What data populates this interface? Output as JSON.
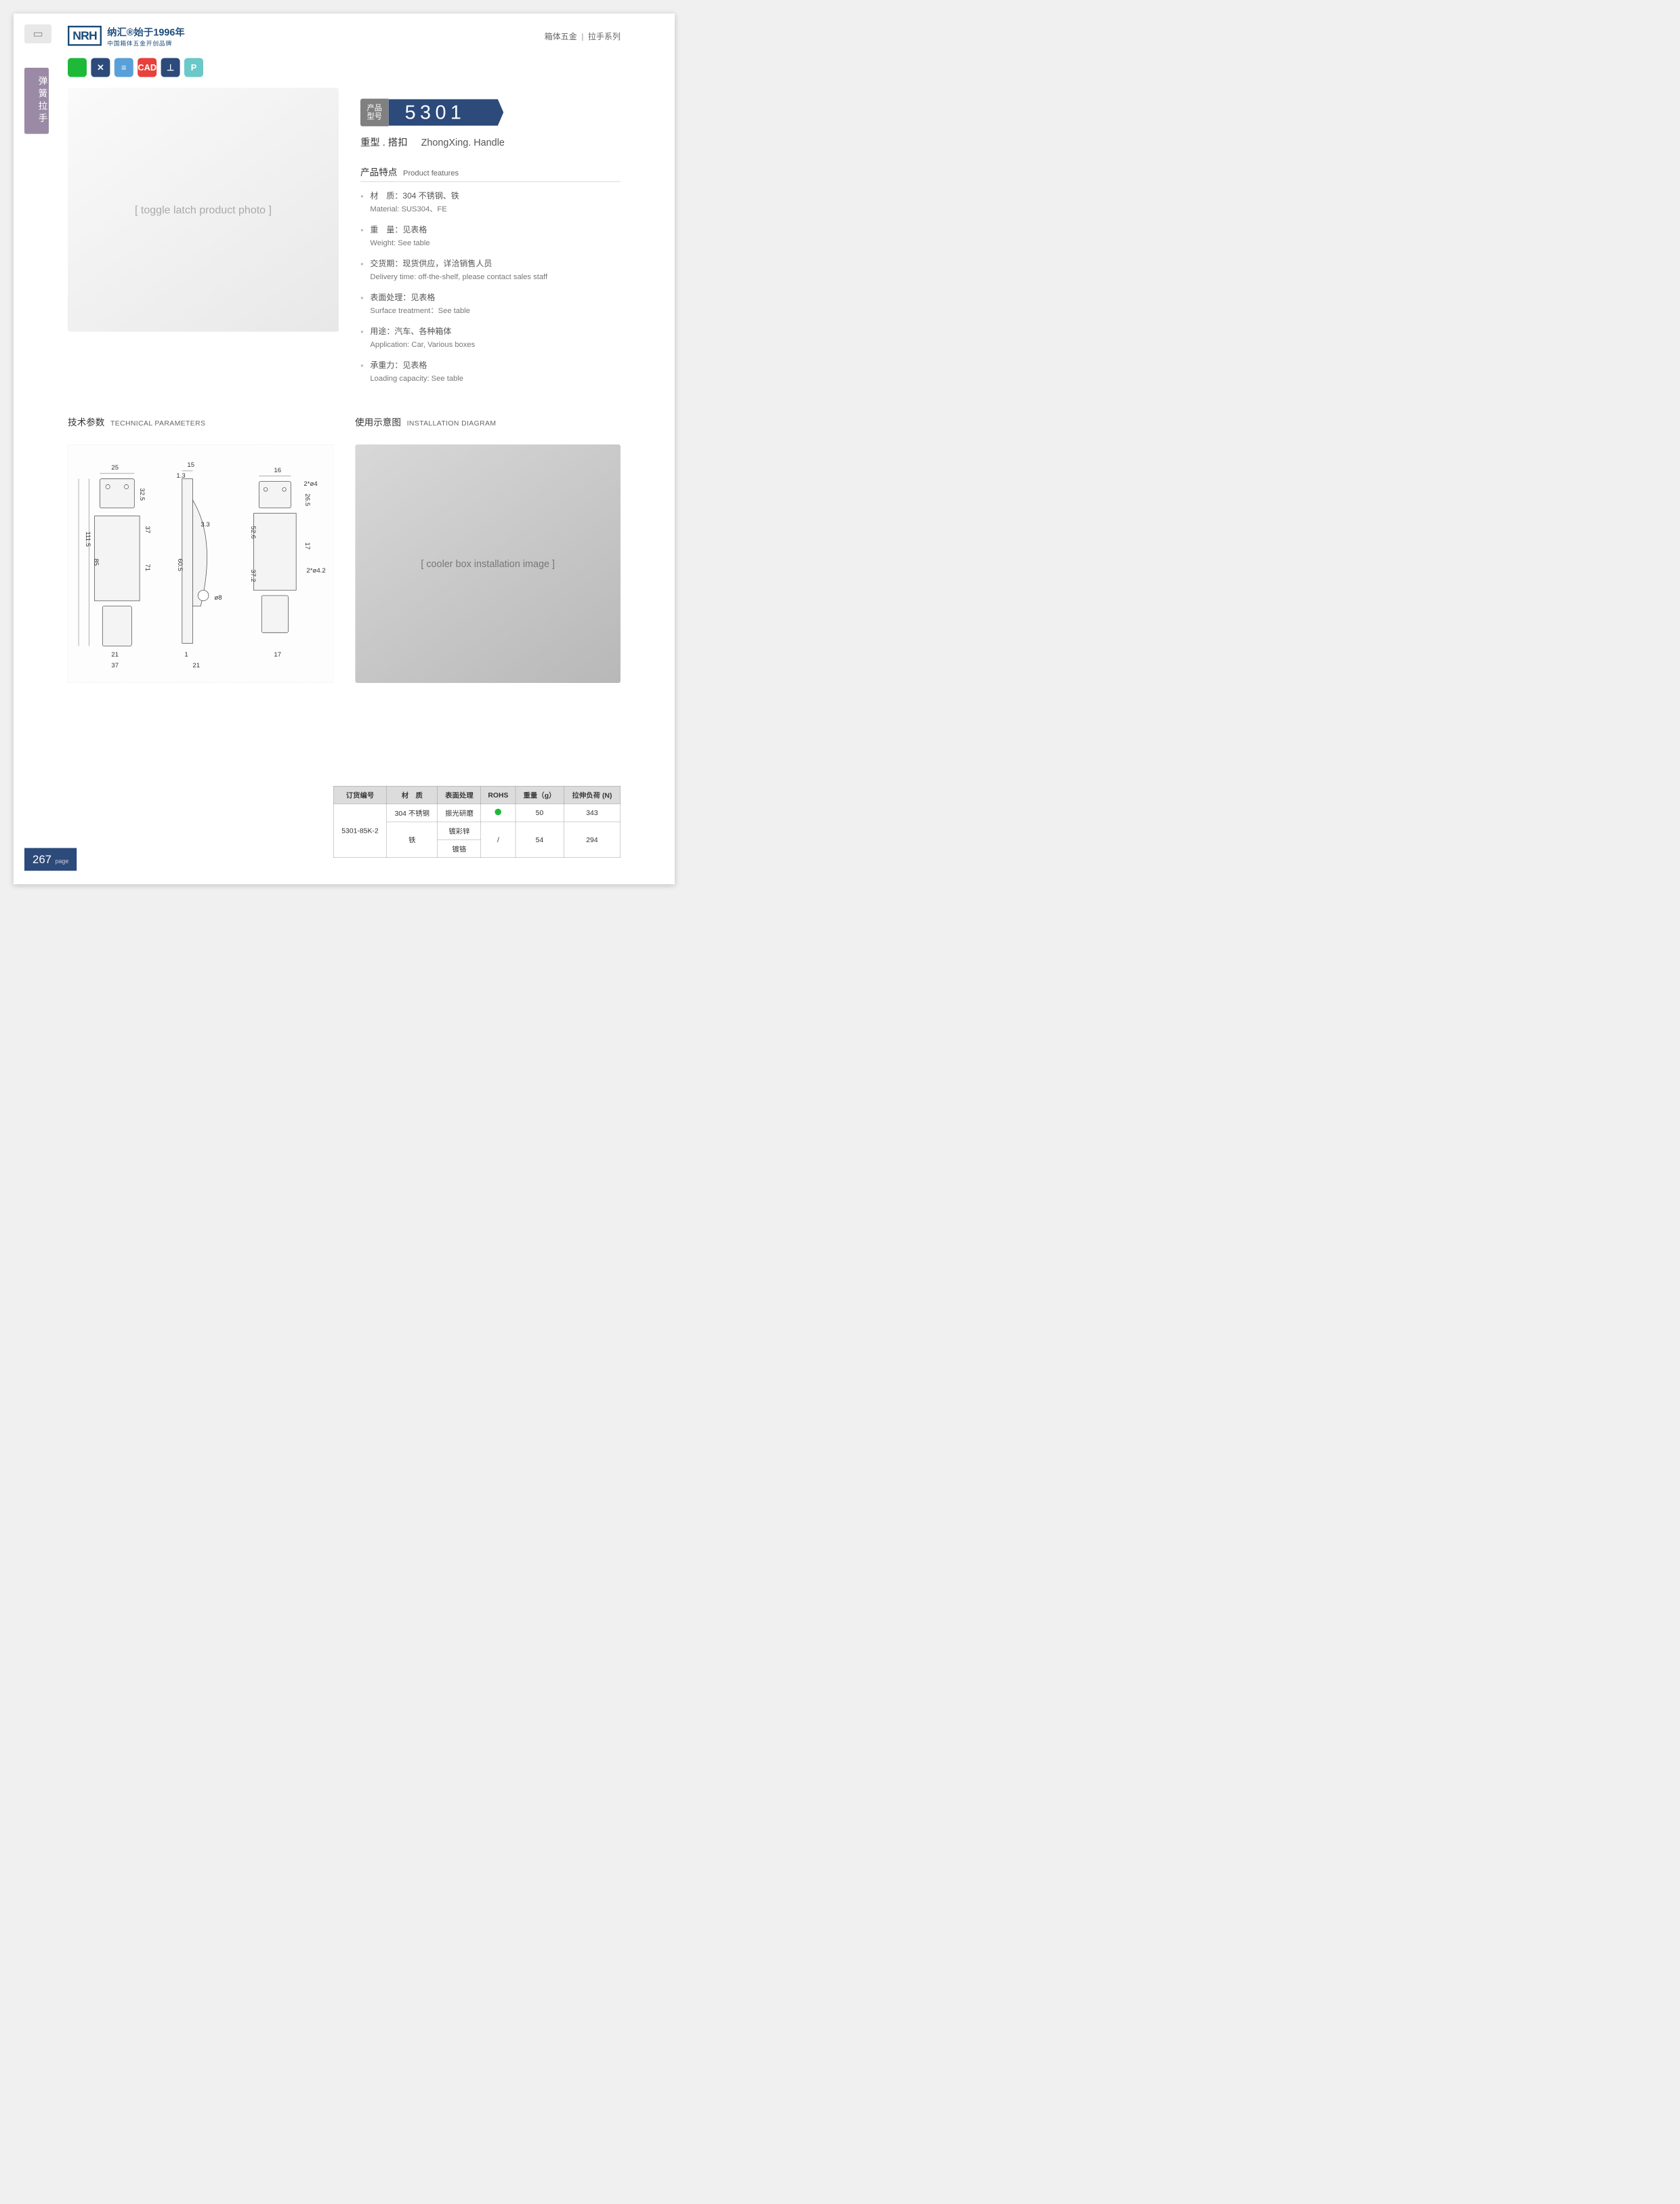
{
  "header": {
    "logo_text": "NRH",
    "brand_cn": "纳汇®始于1996年",
    "brand_sub": "中国箱体五金开创品牌",
    "category": "箱体五金",
    "series": "拉手系列"
  },
  "side_tab": "弹簧拉手",
  "feature_icons": [
    {
      "label": "",
      "color": "#1fb93a"
    },
    {
      "label": "✕",
      "color": "#2c4a7a"
    },
    {
      "label": "≡",
      "color": "#5aa0d8"
    },
    {
      "label": "CAD",
      "color": "#e8403a"
    },
    {
      "label": "⊥",
      "color": "#2c4a7a"
    },
    {
      "label": "P",
      "color": "#6ac8c8"
    }
  ],
  "product": {
    "model_label_top": "产品",
    "model_label_bot": "型号",
    "model": "5301",
    "subtitle_cn": "重型 . 搭扣",
    "subtitle_en": "ZhongXing. Handle",
    "features_title_cn": "产品特点",
    "features_title_en": "Product features",
    "features": [
      {
        "cn": "材　质：304 不锈钢、铁",
        "en": "Material: SUS304、FE"
      },
      {
        "cn": "重　量：见表格",
        "en": "Weight: See table"
      },
      {
        "cn": "交货期：现货供应，详洽销售人员",
        "en": "Delivery time: off-the-shelf, please contact sales staff"
      },
      {
        "cn": "表面处理：见表格",
        "en": "Surface treatment：See table"
      },
      {
        "cn": "用途：汽车、各种箱体",
        "en": "Application: Car, Various boxes"
      },
      {
        "cn": "承重力：见表格",
        "en": "Loading capacity: See table"
      }
    ],
    "photo_placeholder": "[ toggle latch product photo ]"
  },
  "tech": {
    "title_cn": "技术参数",
    "title_en": "TECHNICAL PARAMETERS",
    "install_cn": "使用示意图",
    "install_en": "INSTALLATION DIAGRAM",
    "install_placeholder": "[ cooler box installation image ]",
    "dims": {
      "d25": "25",
      "d32_5": "32.5",
      "d37": "37",
      "d85": "85",
      "d111_5": "111.5",
      "d71": "71",
      "d21": "21",
      "d37b": "37",
      "d15": "15",
      "d1_3": "1.3",
      "d3_3": "3.3",
      "d60_5": "60.5",
      "d1": "1",
      "d21b": "21",
      "dphi8": "ø8",
      "d16": "16",
      "d52_6": "52.6",
      "d26_5": "26.5",
      "d17": "17",
      "d37_2": "37.2",
      "d17b": "17",
      "d2phi4": "2*ø4",
      "d2phi4_2": "2*ø4.2"
    }
  },
  "table": {
    "headers": [
      "订货编号",
      "材　质",
      "表面处理",
      "ROHS",
      "重量（g）",
      "拉伸负荷 (N)"
    ],
    "order_no": "5301-85K-2",
    "rows": [
      {
        "mat": "304 不锈钢",
        "surf": "振光研磨",
        "rohs": "green",
        "weight": "50",
        "load": "343"
      },
      {
        "mat": "铁",
        "surf": "镀彩锌",
        "rohs": "/",
        "weight": "54",
        "load": "294"
      },
      {
        "mat": "",
        "surf": "镀铬",
        "rohs": "",
        "weight": "",
        "load": ""
      }
    ]
  },
  "page_number": "267",
  "page_label": "page",
  "colors": {
    "brand": "#1a4a7a",
    "accent": "#2c4a7a",
    "side": "#9a8aa5",
    "th_bg": "#dcdcdc",
    "border": "#888888",
    "green": "#1fb93a"
  }
}
